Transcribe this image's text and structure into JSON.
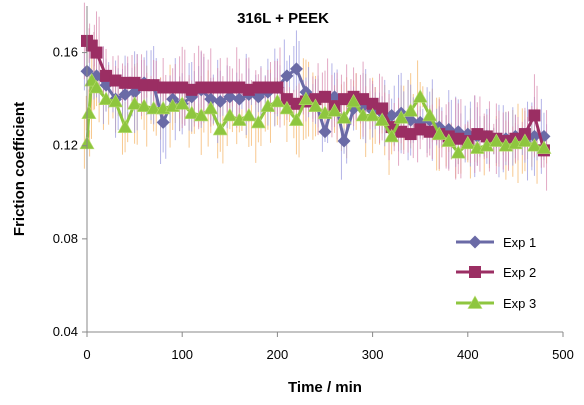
{
  "chart_data": {
    "type": "scatter",
    "title": "316L + PEEK",
    "xlabel": "Time / min",
    "ylabel": "Friction coefficient",
    "xlim": [
      0,
      500
    ],
    "ylim": [
      0.04,
      0.18
    ],
    "xticks": [
      0,
      100,
      200,
      300,
      400,
      500
    ],
    "yticks": [
      0.04,
      0.08,
      0.12,
      0.16
    ],
    "xtick_labels": [
      "0",
      "100",
      "200",
      "300",
      "400",
      "500"
    ],
    "ytick_labels": [
      "0.04",
      "0.08",
      "0.12",
      "0.16"
    ],
    "grid": false,
    "legend_position": "right",
    "error_bars": true,
    "series": [
      {
        "name": "Exp 1",
        "color": "#6a6aa6",
        "marker": "diamond",
        "error_color": "#9a9ae0",
        "points": [
          [
            0,
            0.152
          ],
          [
            10,
            0.15
          ],
          [
            20,
            0.146
          ],
          [
            30,
            0.14
          ],
          [
            40,
            0.142
          ],
          [
            50,
            0.143
          ],
          [
            60,
            0.147
          ],
          [
            70,
            0.146
          ],
          [
            80,
            0.13
          ],
          [
            90,
            0.14
          ],
          [
            100,
            0.138
          ],
          [
            110,
            0.141
          ],
          [
            120,
            0.144
          ],
          [
            130,
            0.14
          ],
          [
            140,
            0.139
          ],
          [
            150,
            0.141
          ],
          [
            160,
            0.14
          ],
          [
            170,
            0.142
          ],
          [
            180,
            0.141
          ],
          [
            190,
            0.143
          ],
          [
            200,
            0.145
          ],
          [
            210,
            0.15
          ],
          [
            220,
            0.153
          ],
          [
            230,
            0.143
          ],
          [
            240,
            0.139
          ],
          [
            250,
            0.126
          ],
          [
            260,
            0.141
          ],
          [
            270,
            0.122
          ],
          [
            280,
            0.136
          ],
          [
            290,
            0.137
          ],
          [
            300,
            0.135
          ],
          [
            310,
            0.134
          ],
          [
            320,
            0.133
          ],
          [
            330,
            0.134
          ],
          [
            340,
            0.131
          ],
          [
            350,
            0.13
          ],
          [
            360,
            0.131
          ],
          [
            370,
            0.128
          ],
          [
            380,
            0.127
          ],
          [
            390,
            0.126
          ],
          [
            400,
            0.125
          ],
          [
            410,
            0.124
          ],
          [
            420,
            0.124
          ],
          [
            430,
            0.122
          ],
          [
            440,
            0.123
          ],
          [
            450,
            0.124
          ],
          [
            460,
            0.122
          ],
          [
            470,
            0.124
          ],
          [
            480,
            0.124
          ]
        ]
      },
      {
        "name": "Exp 2",
        "color": "#9b2e63",
        "marker": "square",
        "error_color": "#d98cb0",
        "points": [
          [
            0,
            0.165
          ],
          [
            5,
            0.163
          ],
          [
            10,
            0.16
          ],
          [
            20,
            0.15
          ],
          [
            30,
            0.148
          ],
          [
            40,
            0.147
          ],
          [
            50,
            0.147
          ],
          [
            60,
            0.146
          ],
          [
            70,
            0.146
          ],
          [
            80,
            0.145
          ],
          [
            90,
            0.145
          ],
          [
            100,
            0.145
          ],
          [
            110,
            0.144
          ],
          [
            120,
            0.145
          ],
          [
            130,
            0.145
          ],
          [
            140,
            0.145
          ],
          [
            150,
            0.145
          ],
          [
            160,
            0.145
          ],
          [
            170,
            0.144
          ],
          [
            180,
            0.145
          ],
          [
            190,
            0.145
          ],
          [
            200,
            0.145
          ],
          [
            210,
            0.14
          ],
          [
            220,
            0.138
          ],
          [
            230,
            0.139
          ],
          [
            240,
            0.14
          ],
          [
            250,
            0.141
          ],
          [
            260,
            0.137
          ],
          [
            270,
            0.14
          ],
          [
            280,
            0.141
          ],
          [
            290,
            0.14
          ],
          [
            300,
            0.138
          ],
          [
            310,
            0.136
          ],
          [
            320,
            0.128
          ],
          [
            330,
            0.126
          ],
          [
            340,
            0.125
          ],
          [
            350,
            0.127
          ],
          [
            360,
            0.126
          ],
          [
            370,
            0.125
          ],
          [
            380,
            0.124
          ],
          [
            390,
            0.123
          ],
          [
            400,
            0.122
          ],
          [
            410,
            0.125
          ],
          [
            420,
            0.124
          ],
          [
            430,
            0.123
          ],
          [
            440,
            0.122
          ],
          [
            450,
            0.123
          ],
          [
            460,
            0.125
          ],
          [
            470,
            0.133
          ],
          [
            480,
            0.118
          ]
        ]
      },
      {
        "name": "Exp 3",
        "color": "#8ec63f",
        "marker": "triangle",
        "error_color": "#f5b66a",
        "points": [
          [
            0,
            0.121
          ],
          [
            2,
            0.134
          ],
          [
            5,
            0.148
          ],
          [
            10,
            0.145
          ],
          [
            20,
            0.14
          ],
          [
            30,
            0.139
          ],
          [
            40,
            0.128
          ],
          [
            50,
            0.138
          ],
          [
            60,
            0.137
          ],
          [
            70,
            0.136
          ],
          [
            80,
            0.136
          ],
          [
            90,
            0.137
          ],
          [
            100,
            0.138
          ],
          [
            110,
            0.134
          ],
          [
            120,
            0.133
          ],
          [
            130,
            0.136
          ],
          [
            140,
            0.127
          ],
          [
            150,
            0.133
          ],
          [
            160,
            0.131
          ],
          [
            170,
            0.133
          ],
          [
            180,
            0.13
          ],
          [
            190,
            0.137
          ],
          [
            200,
            0.139
          ],
          [
            210,
            0.136
          ],
          [
            220,
            0.131
          ],
          [
            230,
            0.14
          ],
          [
            240,
            0.137
          ],
          [
            250,
            0.134
          ],
          [
            260,
            0.135
          ],
          [
            270,
            0.132
          ],
          [
            280,
            0.139
          ],
          [
            290,
            0.133
          ],
          [
            300,
            0.133
          ],
          [
            310,
            0.131
          ],
          [
            320,
            0.124
          ],
          [
            330,
            0.132
          ],
          [
            340,
            0.135
          ],
          [
            350,
            0.141
          ],
          [
            360,
            0.133
          ],
          [
            370,
            0.125
          ],
          [
            380,
            0.122
          ],
          [
            390,
            0.117
          ],
          [
            400,
            0.121
          ],
          [
            410,
            0.119
          ],
          [
            420,
            0.12
          ],
          [
            430,
            0.122
          ],
          [
            440,
            0.12
          ],
          [
            450,
            0.121
          ],
          [
            460,
            0.122
          ],
          [
            470,
            0.12
          ],
          [
            480,
            0.119
          ]
        ]
      }
    ]
  }
}
